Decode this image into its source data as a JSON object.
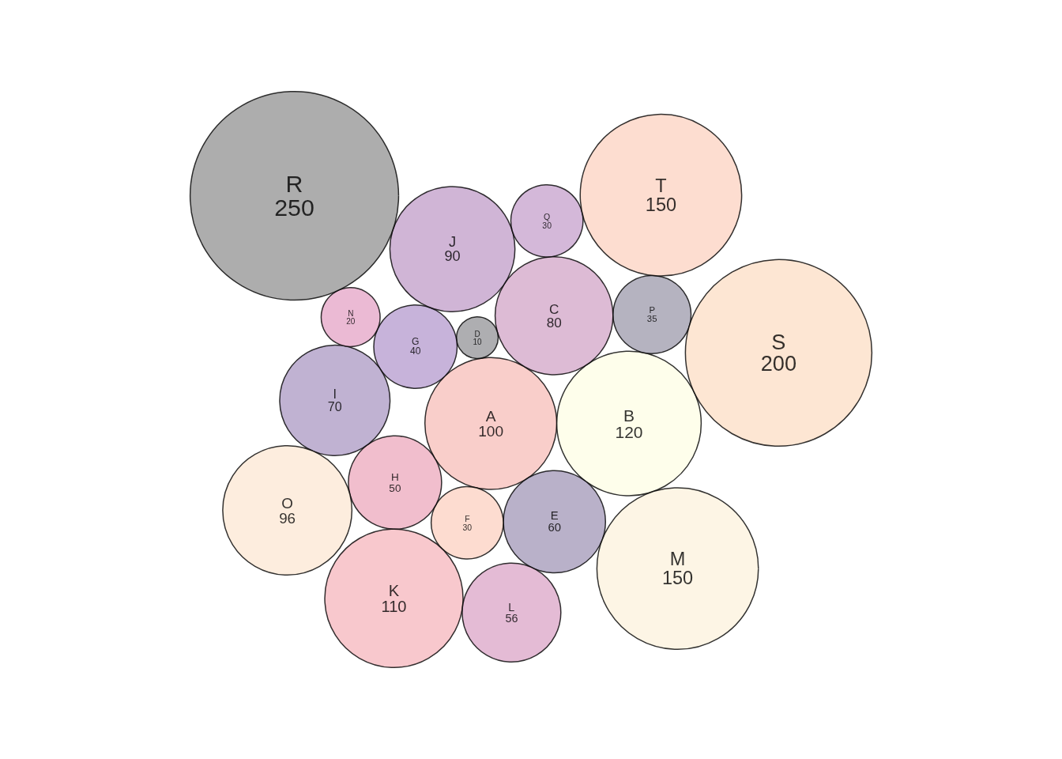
{
  "chart_data": {
    "type": "other",
    "categories": [
      "A",
      "B",
      "C",
      "D",
      "E",
      "F",
      "G",
      "H",
      "I",
      "J",
      "K",
      "L",
      "M",
      "N",
      "O",
      "P",
      "Q",
      "R",
      "S",
      "T"
    ],
    "values": [
      100,
      120,
      80,
      10,
      60,
      30,
      40,
      50,
      70,
      90,
      110,
      56,
      150,
      20,
      96,
      35,
      30,
      250,
      200,
      150
    ],
    "colors": [
      "#f8c2bd",
      "#fefee6",
      "#d5aacb",
      "#9a9a9e",
      "#a89ebb",
      "#fdd3c4",
      "#b9a0d1",
      "#eeaec1",
      "#b09fc7",
      "#c4a3cc",
      "#f6bac1",
      "#ddaacb",
      "#fdf2de",
      "#e6a9c9",
      "#fde9d6",
      "#a3a0b0",
      "#c9a6d0",
      "#999999",
      "#fde0c8",
      "#fdd5c4"
    ],
    "data_labels": true
  }
}
